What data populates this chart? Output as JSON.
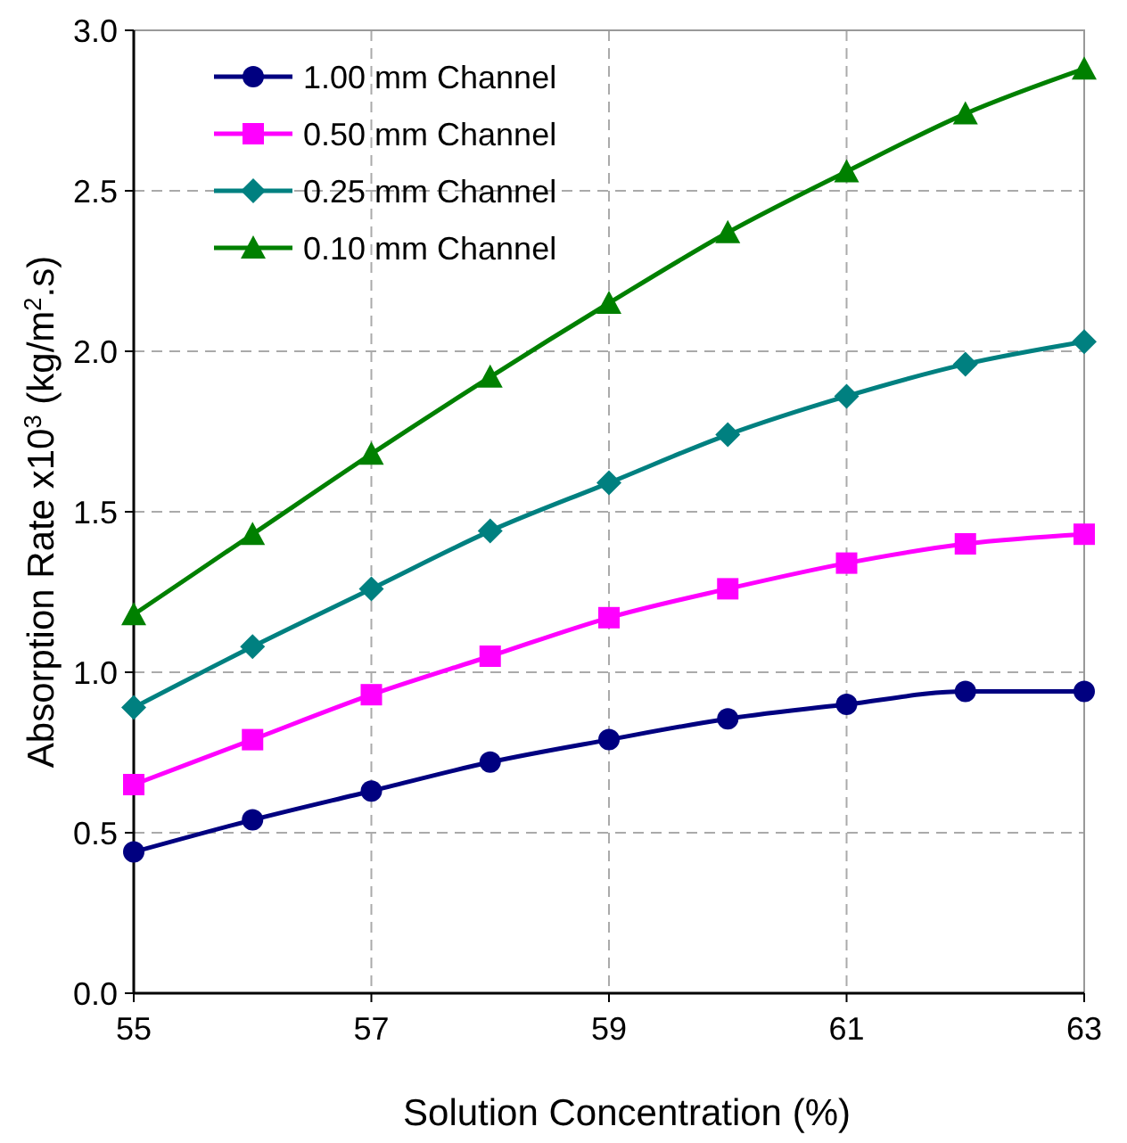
{
  "chart_data": {
    "type": "line",
    "xlabel": "Solution Concentration (%)",
    "ylabel": "Absorption Rate x10$^{3}$  (kg/m$^{2}$.s)",
    "x": [
      55,
      56,
      57,
      58,
      59,
      60,
      61,
      62,
      63
    ],
    "series": [
      {
        "name": "1.00 mm Channel",
        "color": "#000080",
        "marker": "circle",
        "values": [
          0.44,
          0.54,
          0.63,
          0.72,
          0.79,
          0.855,
          0.9,
          0.94,
          0.94
        ]
      },
      {
        "name": "0.50 mm Channel",
        "color": "#ff00ff",
        "marker": "square",
        "values": [
          0.65,
          0.79,
          0.93,
          1.05,
          1.17,
          1.26,
          1.34,
          1.4,
          1.43
        ]
      },
      {
        "name": "0.25 mm Channel",
        "color": "#008080",
        "marker": "diamond",
        "values": [
          0.89,
          1.08,
          1.26,
          1.44,
          1.59,
          1.74,
          1.86,
          1.96,
          2.03
        ]
      },
      {
        "name": "0.10 mm Channel",
        "color": "#008000",
        "marker": "triangle",
        "values": [
          1.18,
          1.43,
          1.68,
          1.92,
          2.15,
          2.37,
          2.56,
          2.74,
          2.88
        ]
      }
    ],
    "xlim": [
      55,
      63
    ],
    "xticks": [
      55,
      57,
      59,
      61,
      63
    ],
    "ylim": [
      0,
      3
    ],
    "yticks": [
      {
        "value": 0,
        "label": "0.0"
      },
      {
        "value": 0.5,
        "label": "0.5"
      },
      {
        "value": 1,
        "label": "1.0"
      },
      {
        "value": 1.5,
        "label": "1.5"
      },
      {
        "value": 2,
        "label": "2.0"
      },
      {
        "value": 2.5,
        "label": "2.5"
      },
      {
        "value": 3,
        "label": "3.0"
      }
    ],
    "grid": true,
    "legend": "top left",
    "line_style": "solid"
  }
}
